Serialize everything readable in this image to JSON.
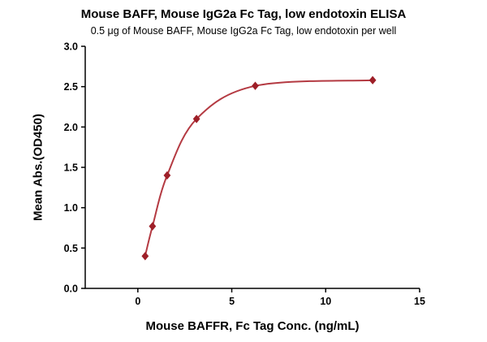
{
  "title": "Mouse BAFF, Mouse IgG2a Fc Tag, low endotoxin ELISA",
  "subtitle": "0.5 μg of Mouse BAFF, Mouse IgG2a Fc Tag, low endotoxin per well",
  "chart_data": {
    "type": "scatter",
    "title": "Mouse BAFF, Mouse IgG2a Fc Tag, low endotoxin ELISA",
    "subtitle": "0.5 μg of Mouse BAFF, Mouse IgG2a Fc Tag, low endotoxin per well",
    "xlabel": "Mouse BAFFR, Fc Tag Conc. (ng/mL)",
    "ylabel": "Mean Abs.(OD450)",
    "x": [
      0.39,
      0.78,
      1.56,
      3.125,
      6.25,
      12.5
    ],
    "y": [
      0.4,
      0.77,
      1.4,
      2.1,
      2.51,
      2.58
    ],
    "fit": "4PL sigmoidal curve through points",
    "xlim": [
      -2.8,
      15
    ],
    "ylim": [
      0,
      3
    ],
    "xtick_values": [
      0,
      5,
      10,
      15
    ],
    "xtick_labels": [
      "0",
      "5",
      "10",
      "15"
    ],
    "ytick_values": [
      0,
      0.5,
      1,
      1.5,
      2,
      2.5,
      3
    ],
    "ytick_labels": [
      "0.0",
      "0.5",
      "1.0",
      "1.5",
      "2.0",
      "2.5",
      "3.0"
    ],
    "marker": "diamond",
    "legend": "none",
    "grid": "off",
    "colors": {
      "marker": "#9e1f28",
      "line": "#b43a42",
      "axis": "#000000",
      "text": "#000000"
    }
  }
}
